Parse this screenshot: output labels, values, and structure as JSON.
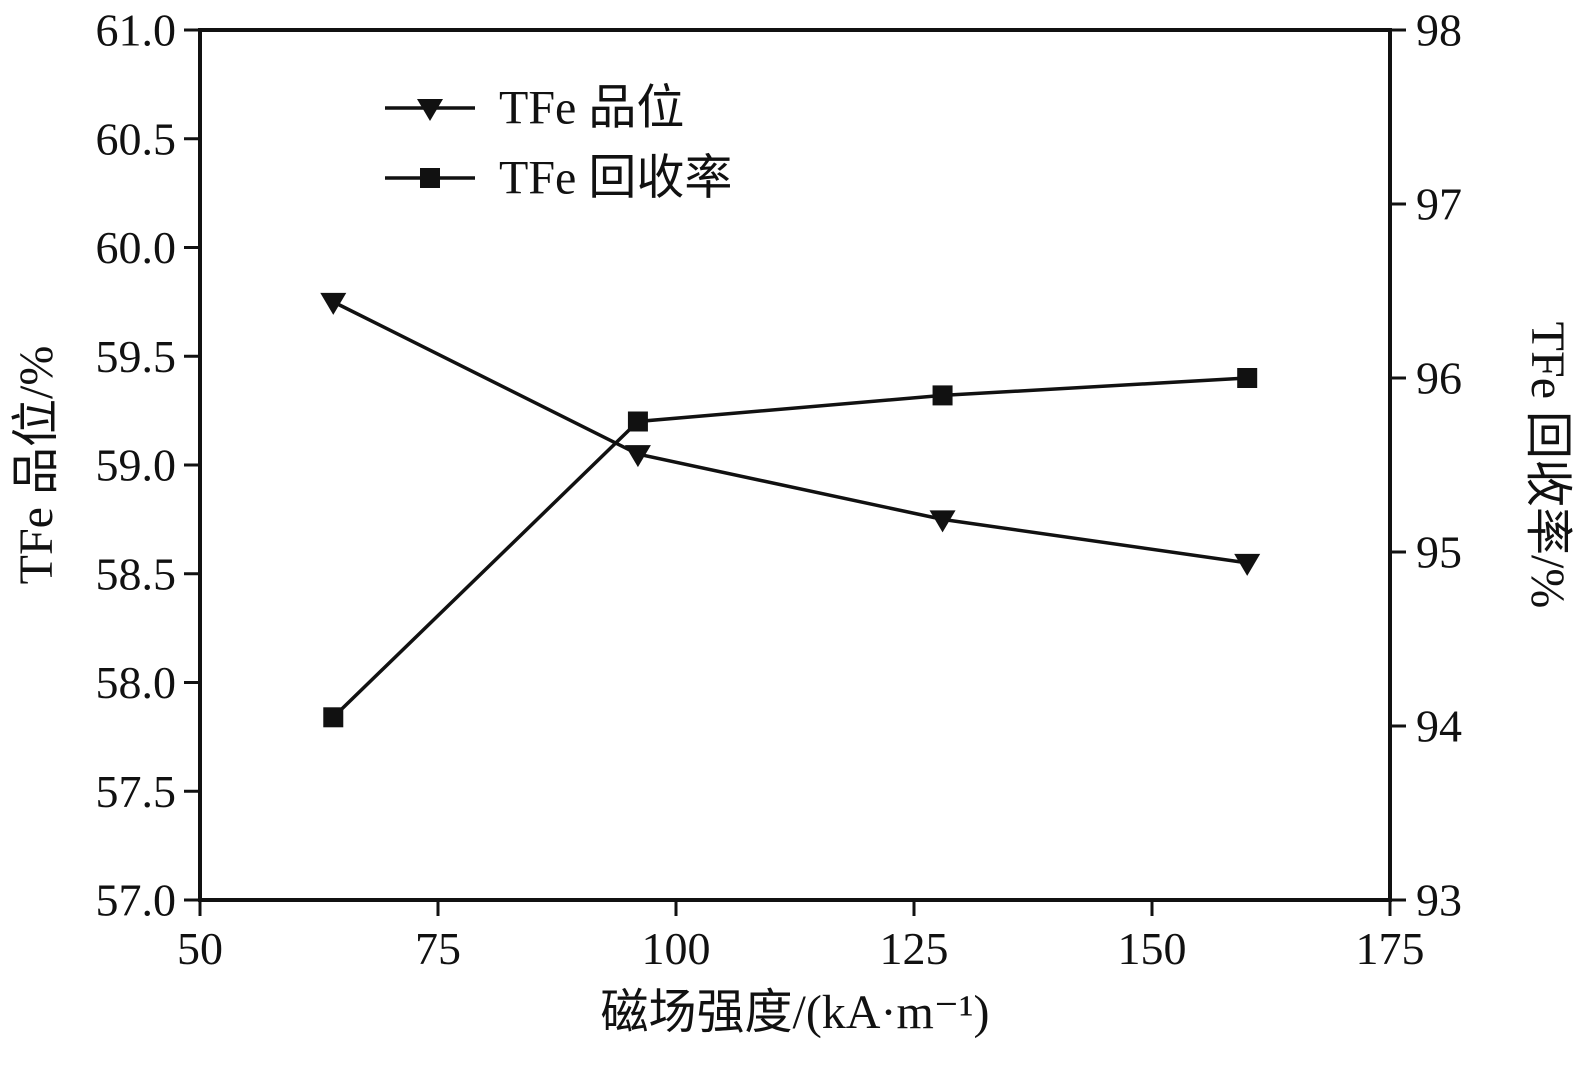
{
  "chart_data": {
    "type": "line",
    "title": "",
    "xlabel": "磁场强度/(kA·m⁻¹)",
    "ylabel_left": "TFe 品位/%",
    "ylabel_right": "TFe 回收率/%",
    "xlim": [
      50,
      175
    ],
    "xticks": [
      50,
      75,
      100,
      125,
      150,
      175
    ],
    "ylim_left": [
      57.0,
      61.0
    ],
    "yticks_left": [
      "57.0",
      "57.5",
      "58.0",
      "58.5",
      "59.0",
      "59.5",
      "60.0",
      "60.5",
      "61.0"
    ],
    "ylim_right": [
      93,
      98
    ],
    "yticks_right": [
      93,
      94,
      95,
      96,
      97,
      98
    ],
    "x": [
      64,
      96,
      128,
      160
    ],
    "series": [
      {
        "name": "TFe 品位",
        "axis": "left",
        "marker": "triangle-down",
        "values": [
          59.75,
          59.05,
          58.75,
          58.55
        ]
      },
      {
        "name": "TFe 回收率",
        "axis": "right",
        "marker": "square",
        "values": [
          94.05,
          95.75,
          95.9,
          96.0
        ]
      }
    ],
    "legend_position": "top-left-inside",
    "grid": false,
    "background": "#ffffff",
    "ink_color": "#111111"
  }
}
